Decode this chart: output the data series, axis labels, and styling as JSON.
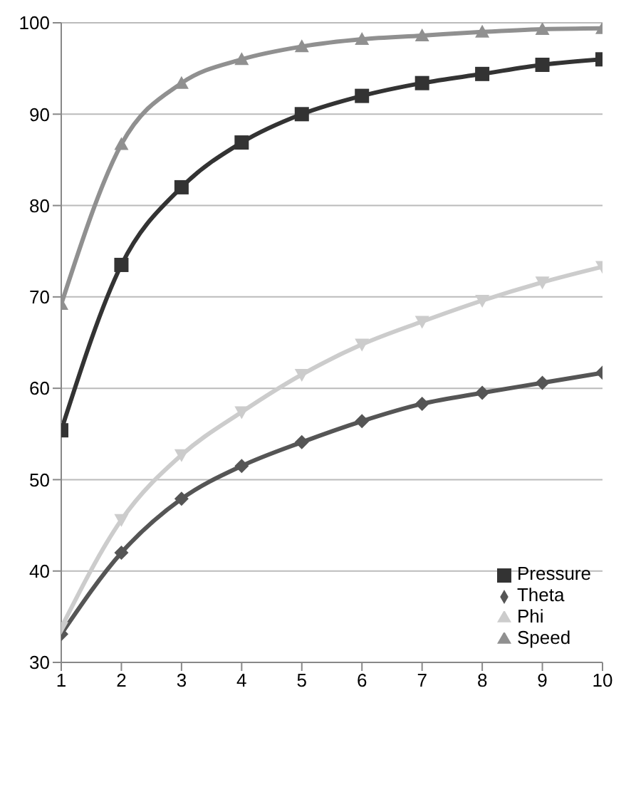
{
  "chart_data": {
    "type": "line",
    "x": [
      1,
      2,
      3,
      4,
      5,
      6,
      7,
      8,
      9,
      10
    ],
    "xlim": [
      1,
      10
    ],
    "xticks": [
      1,
      2,
      3,
      4,
      5,
      6,
      7,
      8,
      9,
      10
    ],
    "ylim": [
      30,
      100
    ],
    "yticks": [
      30,
      40,
      50,
      60,
      70,
      80,
      90,
      100
    ],
    "grid": "y",
    "legend": "bottom right",
    "series": [
      {
        "name": "Pressure",
        "color": "#333333",
        "marker": "square",
        "values": [
          55.4,
          73.5,
          82,
          86.9,
          90,
          92,
          93.4,
          94.4,
          95.4,
          96
        ]
      },
      {
        "name": "Theta",
        "color": "#555555",
        "marker": "diamond",
        "values": [
          33.1,
          42,
          47.9,
          51.5,
          54.1,
          56.4,
          58.3,
          59.5,
          60.6,
          61.7
        ]
      },
      {
        "name": "Phi",
        "color": "#cccccc",
        "marker": "triangle-down",
        "values": [
          33.8,
          45.6,
          52.7,
          57.4,
          61.5,
          64.8,
          67.3,
          69.6,
          71.6,
          73.3
        ]
      },
      {
        "name": "Speed",
        "color": "#909090",
        "marker": "triangle",
        "values": [
          69.2,
          86.7,
          93.4,
          96,
          97.4,
          98.2,
          98.6,
          99,
          99.3,
          99.4
        ]
      }
    ]
  }
}
